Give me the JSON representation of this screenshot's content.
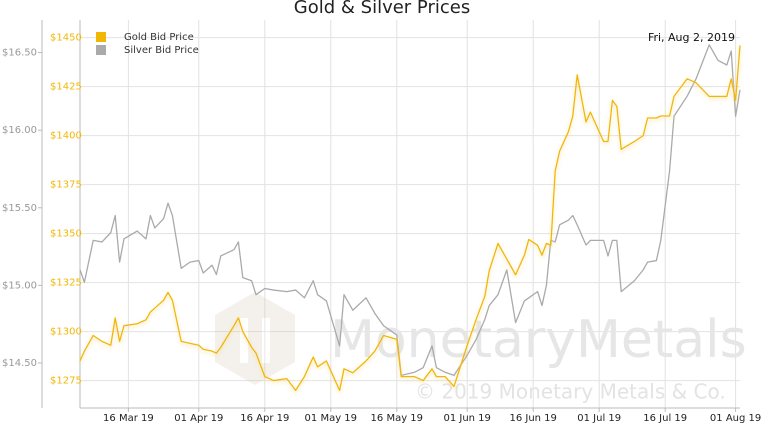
{
  "chart_data": {
    "type": "line",
    "title": "Gold & Silver Prices",
    "annotation": "Fri, Aug 2, 2019",
    "watermark": "MonetaryMetals",
    "watermark_copyright": "© 2019 Monetary Metals & Co.",
    "x": [
      "2019-03-05",
      "2019-03-06",
      "2019-03-08",
      "2019-03-10",
      "2019-03-12",
      "2019-03-13",
      "2019-03-14",
      "2019-03-15",
      "2019-03-18",
      "2019-03-20",
      "2019-03-21",
      "2019-03-22",
      "2019-03-24",
      "2019-03-25",
      "2019-03-26",
      "2019-03-28",
      "2019-03-30",
      "2019-04-01",
      "2019-04-02",
      "2019-04-04",
      "2019-04-05",
      "2019-04-06",
      "2019-04-09",
      "2019-04-10",
      "2019-04-11",
      "2019-04-13",
      "2019-04-14",
      "2019-04-16",
      "2019-04-18",
      "2019-04-21",
      "2019-04-23",
      "2019-04-25",
      "2019-04-27",
      "2019-04-28",
      "2019-04-30",
      "2019-05-03",
      "2019-05-04",
      "2019-05-06",
      "2019-05-09",
      "2019-05-11",
      "2019-05-13",
      "2019-05-16",
      "2019-05-17",
      "2019-05-20",
      "2019-05-22",
      "2019-05-24",
      "2019-05-25",
      "2019-05-27",
      "2019-05-29",
      "2019-06-01",
      "2019-06-03",
      "2019-06-05",
      "2019-06-06",
      "2019-06-08",
      "2019-06-10",
      "2019-06-12",
      "2019-06-14",
      "2019-06-15",
      "2019-06-17",
      "2019-06-18",
      "2019-06-19",
      "2019-06-20",
      "2019-06-21",
      "2019-06-22",
      "2019-06-24",
      "2019-06-25",
      "2019-06-26",
      "2019-06-28",
      "2019-06-29",
      "2019-07-02",
      "2019-07-03",
      "2019-07-04",
      "2019-07-05",
      "2019-07-06",
      "2019-07-09",
      "2019-07-11",
      "2019-07-12",
      "2019-07-14",
      "2019-07-15",
      "2019-07-17",
      "2019-07-18",
      "2019-07-21",
      "2019-07-23",
      "2019-07-26",
      "2019-07-28",
      "2019-07-30",
      "2019-07-31",
      "2019-08-01",
      "2019-08-02"
    ],
    "series": [
      {
        "name": "Gold Bid Price",
        "color": "#f2b705",
        "values": [
          1285,
          1290,
          1298,
          1295,
          1293,
          1307,
          1295,
          1303,
          1304,
          1306,
          1310,
          1312,
          1316,
          1320,
          1316,
          1295,
          1294,
          1293,
          1291,
          1290,
          1289,
          1292,
          1303,
          1307,
          1300,
          1292,
          1289,
          1277,
          1275,
          1276,
          1270,
          1277,
          1287,
          1282,
          1285,
          1270,
          1281,
          1279,
          1285,
          1290,
          1298,
          1296,
          1277,
          1277,
          1275,
          1281,
          1277,
          1277,
          1272,
          1293,
          1306,
          1318,
          1331,
          1345,
          1337,
          1329,
          1339,
          1347,
          1344,
          1339,
          1345,
          1344,
          1382,
          1392,
          1402,
          1410,
          1431,
          1407,
          1412,
          1397,
          1397,
          1418,
          1415,
          1393,
          1397,
          1400,
          1409,
          1409,
          1410,
          1410,
          1420,
          1429,
          1427,
          1420,
          1420,
          1420,
          1429,
          1418,
          1446
        ]
      },
      {
        "name": "Silver Bid Price",
        "color": "#aaaaaa",
        "axis": "y2",
        "values": [
          15.1,
          15.02,
          15.29,
          15.28,
          15.34,
          15.45,
          15.15,
          15.3,
          15.35,
          15.3,
          15.45,
          15.37,
          15.43,
          15.53,
          15.45,
          15.11,
          15.15,
          15.16,
          15.08,
          15.13,
          15.07,
          15.19,
          15.23,
          15.28,
          15.05,
          15.03,
          14.94,
          14.98,
          14.97,
          14.96,
          14.97,
          14.92,
          15.03,
          14.94,
          14.9,
          14.61,
          14.94,
          14.84,
          14.92,
          14.82,
          14.74,
          14.68,
          14.42,
          14.44,
          14.47,
          14.61,
          14.47,
          14.44,
          14.42,
          14.55,
          14.65,
          14.78,
          14.87,
          14.94,
          15.1,
          14.76,
          14.9,
          14.92,
          14.96,
          14.87,
          15.0,
          15.29,
          15.28,
          15.39,
          15.42,
          15.45,
          15.39,
          15.26,
          15.29,
          15.29,
          15.19,
          15.29,
          15.29,
          14.96,
          15.03,
          15.1,
          15.15,
          15.16,
          15.29,
          15.74,
          16.09,
          16.22,
          16.33,
          16.55,
          16.45,
          16.42,
          16.51,
          16.09,
          16.26
        ]
      }
    ],
    "xlim": [
      "2019-03-05",
      "2019-08-02"
    ],
    "xticks": [
      {
        "value": "2019-03-16",
        "label": "16 Mar 19"
      },
      {
        "value": "2019-04-01",
        "label": "01 Apr 19"
      },
      {
        "value": "2019-04-16",
        "label": "16 Apr 19"
      },
      {
        "value": "2019-05-01",
        "label": "01 May 19"
      },
      {
        "value": "2019-05-16",
        "label": "16 May 19"
      },
      {
        "value": "2019-06-01",
        "label": "01 Jun 19"
      },
      {
        "value": "2019-06-16",
        "label": "16 Jun 19"
      },
      {
        "value": "2019-07-01",
        "label": "01 Jul 19"
      },
      {
        "value": "2019-07-16",
        "label": "16 Jul 19"
      },
      {
        "value": "2019-08-01",
        "label": "01 Aug 19"
      }
    ],
    "ylim": [
      1261,
      1459
    ],
    "yticks": [
      {
        "value": 1275,
        "label": "$1275"
      },
      {
        "value": 1300,
        "label": "$1300"
      },
      {
        "value": 1325,
        "label": "$1325"
      },
      {
        "value": 1350,
        "label": "$1350"
      },
      {
        "value": 1375,
        "label": "$1375"
      },
      {
        "value": 1400,
        "label": "$1400"
      },
      {
        "value": 1425,
        "label": "$1425"
      },
      {
        "value": 1450,
        "label": "$1450"
      }
    ],
    "y2lim": [
      14.21,
      16.71
    ],
    "y2ticks": [
      {
        "value": 14.5,
        "label": "$14.50"
      },
      {
        "value": 15,
        "label": "$15.00"
      },
      {
        "value": 15.5,
        "label": "$15.50"
      },
      {
        "value": 16,
        "label": "$16.00"
      },
      {
        "value": 16.5,
        "label": "$16.50"
      }
    ],
    "grid": true,
    "legend": "top-left"
  }
}
